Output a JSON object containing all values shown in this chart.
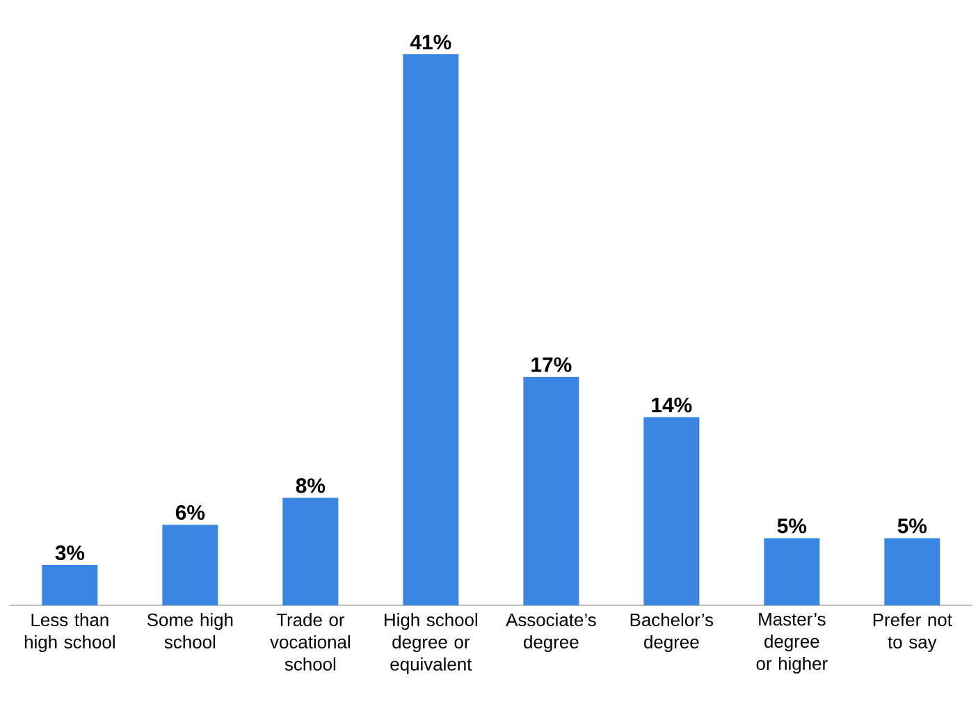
{
  "chart_data": {
    "type": "bar",
    "categories": [
      "Less than high school",
      "Some high school",
      "Trade or vocational school",
      "High school degree or equivalent",
      "Associate’s degree",
      "Bachelor’s degree",
      "Master’s degree or higher",
      "Prefer not to say"
    ],
    "values": [
      3,
      6,
      8,
      41,
      17,
      14,
      5,
      5
    ],
    "value_labels": [
      "3%",
      "6%",
      "8%",
      "41%",
      "17%",
      "14%",
      "5%",
      "5%"
    ],
    "color": "#3a86e0"
  }
}
